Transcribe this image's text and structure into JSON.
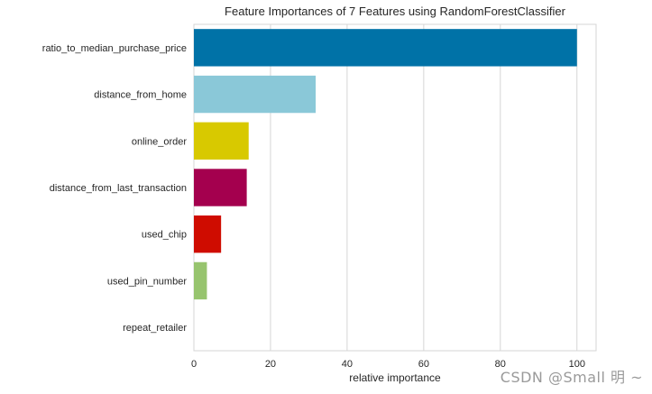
{
  "chart_data": {
    "type": "bar",
    "orientation": "horizontal",
    "title": "Feature Importances of 7 Features using RandomForestClassifier",
    "xlabel": "relative importance",
    "ylabel": "",
    "xlim": [
      0,
      105
    ],
    "xticks": [
      0,
      20,
      40,
      60,
      80,
      100
    ],
    "grid": true,
    "categories": [
      "ratio_to_median_purchase_price",
      "distance_from_home",
      "online_order",
      "distance_from_last_transaction",
      "used_chip",
      "used_pin_number",
      "repeat_retailer"
    ],
    "values": [
      100,
      31.8,
      14.3,
      13.8,
      7.1,
      3.4,
      0
    ],
    "colors": [
      "#0072a7",
      "#8ac8d8",
      "#d8c900",
      "#a4004e",
      "#cf0c00",
      "#97c46e",
      "#0072a7"
    ]
  },
  "watermark": "CSDN @Small  明  ~"
}
